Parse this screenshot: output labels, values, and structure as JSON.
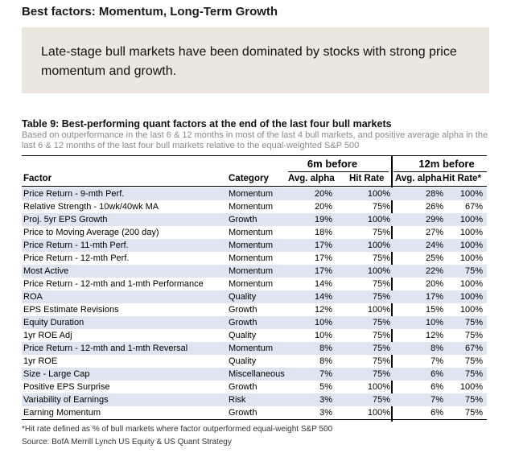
{
  "page_title": "Best factors: Momentum, Long-Term Growth",
  "callout_text": "Late-stage bull markets have been dominated by stocks with strong price momentum and growth.",
  "table": {
    "title": "Table 9: Best-performing quant factors at the end of the last four bull markets",
    "subtitle": "Based on outperformance in the last 6 & 12 months in most of the last 4 bull markets, and positive average alpha in the last 6 & 12 months of the last four bull markets relative to the equal-weighted S&P 500",
    "group_6m": "6m before",
    "group_12m": "12m before",
    "columns": {
      "factor": "Factor",
      "category": "Category",
      "avg_alpha_6m": "Avg. alpha",
      "hit_rate_6m": "Hit Rate",
      "avg_alpha_12m": "Avg. alpha",
      "hit_rate_12m": "Hit Rate*"
    },
    "rows": [
      {
        "factor": "Price Return - 9-mth Perf.",
        "category": "Momentum",
        "a6": "20%",
        "h6": "100%",
        "a12": "28%",
        "h12": "100%"
      },
      {
        "factor": "Relative Strength - 10wk/40wk MA",
        "category": "Momentum",
        "a6": "20%",
        "h6": "75%",
        "a12": "26%",
        "h12": "67%"
      },
      {
        "factor": "Proj. 5yr EPS Growth",
        "category": "Growth",
        "a6": "19%",
        "h6": "100%",
        "a12": "29%",
        "h12": "100%"
      },
      {
        "factor": "Price to Moving Average (200 day)",
        "category": "Momentum",
        "a6": "18%",
        "h6": "75%",
        "a12": "27%",
        "h12": "100%"
      },
      {
        "factor": "Price Return - 11-mth Perf.",
        "category": "Momentum",
        "a6": "17%",
        "h6": "100%",
        "a12": "24%",
        "h12": "100%"
      },
      {
        "factor": "Price Return - 12-mth Perf.",
        "category": "Momentum",
        "a6": "17%",
        "h6": "75%",
        "a12": "25%",
        "h12": "100%"
      },
      {
        "factor": "Most Active",
        "category": "Momentum",
        "a6": "17%",
        "h6": "100%",
        "a12": "22%",
        "h12": "75%"
      },
      {
        "factor": "Price Return - 12-mth and 1-mth Performance",
        "category": "Momentum",
        "a6": "14%",
        "h6": "75%",
        "a12": "20%",
        "h12": "100%"
      },
      {
        "factor": "ROA",
        "category": "Quality",
        "a6": "14%",
        "h6": "75%",
        "a12": "17%",
        "h12": "100%"
      },
      {
        "factor": "EPS Estimate Revisions",
        "category": "Growth",
        "a6": "12%",
        "h6": "100%",
        "a12": "15%",
        "h12": "100%"
      },
      {
        "factor": "Equity Duration",
        "category": "Growth",
        "a6": "10%",
        "h6": "75%",
        "a12": "10%",
        "h12": "75%"
      },
      {
        "factor": "1yr ROE Adj",
        "category": "Quality",
        "a6": "10%",
        "h6": "75%",
        "a12": "12%",
        "h12": "75%"
      },
      {
        "factor": "Price Return - 12-mth and 1-mth Reversal",
        "category": "Momentum",
        "a6": "8%",
        "h6": "75%",
        "a12": "8%",
        "h12": "67%"
      },
      {
        "factor": "1yr ROE",
        "category": "Quality",
        "a6": "8%",
        "h6": "75%",
        "a12": "7%",
        "h12": "75%"
      },
      {
        "factor": "Size - Large Cap",
        "category": "Miscellaneous",
        "a6": "7%",
        "h6": "75%",
        "a12": "6%",
        "h12": "75%"
      },
      {
        "factor": "Positive EPS Surprise",
        "category": "Growth",
        "a6": "5%",
        "h6": "100%",
        "a12": "6%",
        "h12": "100%"
      },
      {
        "factor": "Variability of Earnings",
        "category": "Risk",
        "a6": "3%",
        "h6": "75%",
        "a12": "7%",
        "h12": "75%"
      },
      {
        "factor": "Earning Momentum",
        "category": "Growth",
        "a6": "3%",
        "h6": "100%",
        "a12": "6%",
        "h12": "75%"
      }
    ]
  },
  "footnote": "*Hit rate defined as % of bull markets where factor outperformed equal-weight S&P 500",
  "source": "Source: BofA Merrill Lynch US Equity & US Quant Strategy",
  "colors": {
    "callout_bg": "#ebe7df",
    "row_shade": "#dde5f0",
    "subtitle_text": "#8a8a8a"
  }
}
